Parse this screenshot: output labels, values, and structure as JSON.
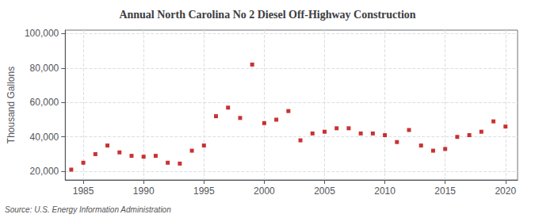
{
  "chart_data": {
    "type": "scatter",
    "title": "Annual North Carolina No 2 Diesel Off-Highway Construction",
    "ylabel": "Thousand Gallons",
    "annotation": "Source: U.S. Energy Information Administration",
    "x": [
      1984,
      1985,
      1986,
      1987,
      1988,
      1989,
      1990,
      1991,
      1992,
      1993,
      1994,
      1995,
      1996,
      1997,
      1998,
      1999,
      2000,
      2001,
      2002,
      2003,
      2004,
      2005,
      2006,
      2007,
      2008,
      2009,
      2010,
      2011,
      2012,
      2013,
      2014,
      2015,
      2016,
      2017,
      2018,
      2019,
      2020
    ],
    "values": [
      21000,
      25000,
      30000,
      35000,
      31000,
      29000,
      28500,
      29000,
      25000,
      24500,
      32000,
      35000,
      52000,
      57000,
      51000,
      82000,
      48000,
      50000,
      55000,
      38000,
      42000,
      43000,
      45000,
      45000,
      42000,
      42000,
      41000,
      37000,
      44000,
      35000,
      32000,
      33000,
      40000,
      41000,
      43000,
      49000,
      46000
    ],
    "color": "#bb0000",
    "marker": "square",
    "xlim": [
      1983.5,
      2021
    ],
    "xticks": [
      1985,
      1990,
      1995,
      2000,
      2005,
      2010,
      2015,
      2020
    ],
    "ylim": [
      15000,
      102000
    ],
    "yticks": [
      {
        "value": 20000,
        "label": "20,000"
      },
      {
        "value": 40000,
        "label": "40,000"
      },
      {
        "value": 60000,
        "label": "60,000"
      },
      {
        "value": 80000,
        "label": "80,000"
      },
      {
        "value": 100000,
        "label": "100,000"
      }
    ],
    "grid": true
  }
}
